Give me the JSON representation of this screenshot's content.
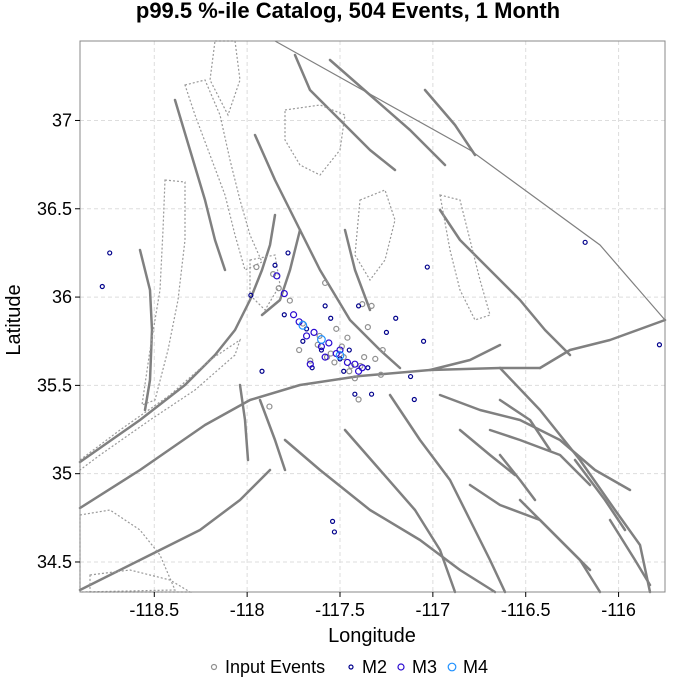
{
  "chart_data": {
    "type": "scatter",
    "title": "p99.5 %-ile Catalog, 504 Events, 1 Month",
    "xlabel": "Longitude",
    "ylabel": "Latitude",
    "xlim": [
      -118.9,
      -115.75
    ],
    "ylim": [
      34.33,
      37.45
    ],
    "xticks": [
      -118.5,
      -118,
      -117.5,
      -117,
      -116.5,
      -116
    ],
    "xtick_labels": [
      "-118.5",
      "-118",
      "-117.5",
      "-117",
      "-116.5",
      "-116"
    ],
    "yticks": [
      34.5,
      35,
      35.5,
      36,
      36.5,
      37
    ],
    "ytick_labels": [
      "34.5",
      "35",
      "35.5",
      "36",
      "36.5",
      "37"
    ],
    "grid": true,
    "legend_position": "bottom",
    "colors": {
      "input": "#909090",
      "m2": "#00008b",
      "m3": "#2a0ad0",
      "m4": "#1e90ff",
      "fault": "#808080",
      "grid": "#dddddd"
    },
    "series": [
      {
        "name": "Input Events",
        "key": "input",
        "points": [
          [
            -117.62,
            35.73
          ],
          [
            -117.55,
            35.68
          ],
          [
            -117.48,
            35.66
          ],
          [
            -117.44,
            35.61
          ],
          [
            -117.7,
            35.85
          ],
          [
            -117.33,
            35.95
          ],
          [
            -117.38,
            35.96
          ],
          [
            -117.37,
            35.66
          ],
          [
            -117.31,
            35.65
          ],
          [
            -117.58,
            36.08
          ],
          [
            -117.77,
            35.98
          ],
          [
            -117.83,
            36.05
          ],
          [
            -117.86,
            36.13
          ],
          [
            -117.95,
            36.17
          ],
          [
            -117.88,
            35.38
          ],
          [
            -117.28,
            35.56
          ],
          [
            -117.42,
            35.54
          ],
          [
            -117.52,
            35.82
          ],
          [
            -117.27,
            35.7
          ],
          [
            -117.46,
            35.77
          ],
          [
            -117.66,
            35.64
          ],
          [
            -117.72,
            35.7
          ],
          [
            -117.35,
            35.83
          ],
          [
            -117.4,
            35.42
          ],
          [
            -117.61,
            35.78
          ],
          [
            -117.53,
            35.63
          ],
          [
            -117.49,
            35.72
          ],
          [
            -117.57,
            35.66
          ],
          [
            -117.45,
            35.58
          ],
          [
            -117.39,
            35.61
          ]
        ]
      },
      {
        "name": "M2",
        "key": "m2",
        "points": [
          [
            -118.74,
            36.25
          ],
          [
            -118.78,
            36.06
          ],
          [
            -117.98,
            36.01
          ],
          [
            -117.92,
            35.58
          ],
          [
            -117.78,
            36.25
          ],
          [
            -117.03,
            36.17
          ],
          [
            -116.18,
            36.31
          ],
          [
            -115.78,
            35.73
          ],
          [
            -117.05,
            35.75
          ],
          [
            -117.12,
            35.55
          ],
          [
            -117.1,
            35.42
          ],
          [
            -117.42,
            35.45
          ],
          [
            -117.33,
            35.45
          ],
          [
            -117.54,
            34.73
          ],
          [
            -117.53,
            34.67
          ],
          [
            -117.4,
            35.95
          ],
          [
            -117.7,
            35.75
          ],
          [
            -117.65,
            35.6
          ],
          [
            -117.55,
            35.88
          ],
          [
            -117.45,
            35.7
          ],
          [
            -117.6,
            35.7
          ],
          [
            -117.5,
            35.65
          ],
          [
            -117.35,
            35.6
          ],
          [
            -117.8,
            35.9
          ],
          [
            -117.85,
            36.18
          ],
          [
            -117.2,
            35.88
          ],
          [
            -117.25,
            35.8
          ],
          [
            -117.58,
            35.95
          ],
          [
            -117.68,
            35.82
          ],
          [
            -117.48,
            35.58
          ]
        ]
      },
      {
        "name": "M3",
        "key": "m3",
        "points": [
          [
            -117.75,
            35.9
          ],
          [
            -117.68,
            35.78
          ],
          [
            -117.6,
            35.72
          ],
          [
            -117.52,
            35.68
          ],
          [
            -117.46,
            35.63
          ],
          [
            -117.4,
            35.58
          ],
          [
            -117.72,
            35.86
          ],
          [
            -117.64,
            35.8
          ],
          [
            -117.56,
            35.74
          ],
          [
            -117.5,
            35.7
          ],
          [
            -117.42,
            35.62
          ],
          [
            -117.38,
            35.6
          ],
          [
            -117.66,
            35.62
          ],
          [
            -117.58,
            35.66
          ],
          [
            -117.84,
            36.12
          ],
          [
            -117.8,
            36.02
          ]
        ]
      },
      {
        "name": "M4",
        "key": "m4",
        "points": [
          [
            -117.7,
            35.84
          ],
          [
            -117.6,
            35.76
          ],
          [
            -117.5,
            35.67
          ]
        ]
      }
    ],
    "legend": [
      {
        "key": "input",
        "label": "Input Events"
      },
      {
        "key": "m2",
        "label": "M2"
      },
      {
        "key": "m3",
        "label": "M3"
      },
      {
        "key": "m4",
        "label": "M4"
      }
    ]
  }
}
